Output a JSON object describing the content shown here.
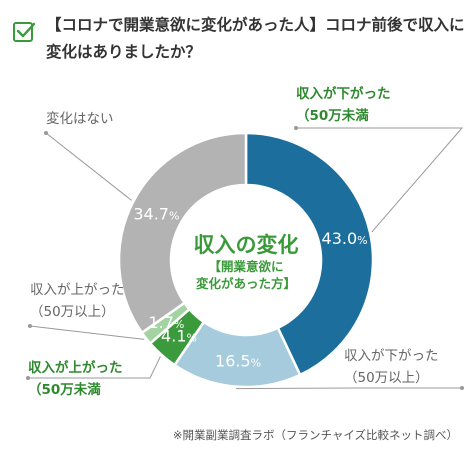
{
  "header": {
    "title": "【コロナで開業意欲に変化があった人】コロナ前後で収入に変化はありましたか？",
    "check_icon": "check-square-icon",
    "accent": "#3a9a3a"
  },
  "chart_data": {
    "type": "pie",
    "subtype": "donut",
    "center_title": "収入の変化",
    "center_subtitle_1": "【開業意欲に",
    "center_subtitle_2": "変化があった方】",
    "unit": "%",
    "slices": [
      {
        "category": "収入が下がった（50万未満",
        "line1": "収入が下がった",
        "line2": "（50万未満",
        "value": 43.0,
        "color": "#1c6e9c",
        "label_style": "green"
      },
      {
        "category": "収入が下がった（50万以上）",
        "line1": "収入が下がった",
        "line2": "（50万以上）",
        "value": 16.5,
        "color": "#a6cbdd",
        "label_style": "gray"
      },
      {
        "category": "収入が上がった（50万未満",
        "line1": "収入が上がった",
        "line2": "（50万未満",
        "value": 4.1,
        "color": "#3b9a3b",
        "label_style": "green"
      },
      {
        "category": "収入が上がった（50万以上）",
        "line1": "収入が上がった",
        "line2": "（50万以上）",
        "value": 1.7,
        "color": "#a3d3a0",
        "label_style": "gray"
      },
      {
        "category": "変化はない",
        "line1": "変化はない",
        "line2": "",
        "value": 34.7,
        "color": "#b3b3b3",
        "label_style": "gray"
      }
    ],
    "legend": "none"
  },
  "footnote": "※開業副業調査ラボ（フランチャイズ比較ネット調べ）"
}
